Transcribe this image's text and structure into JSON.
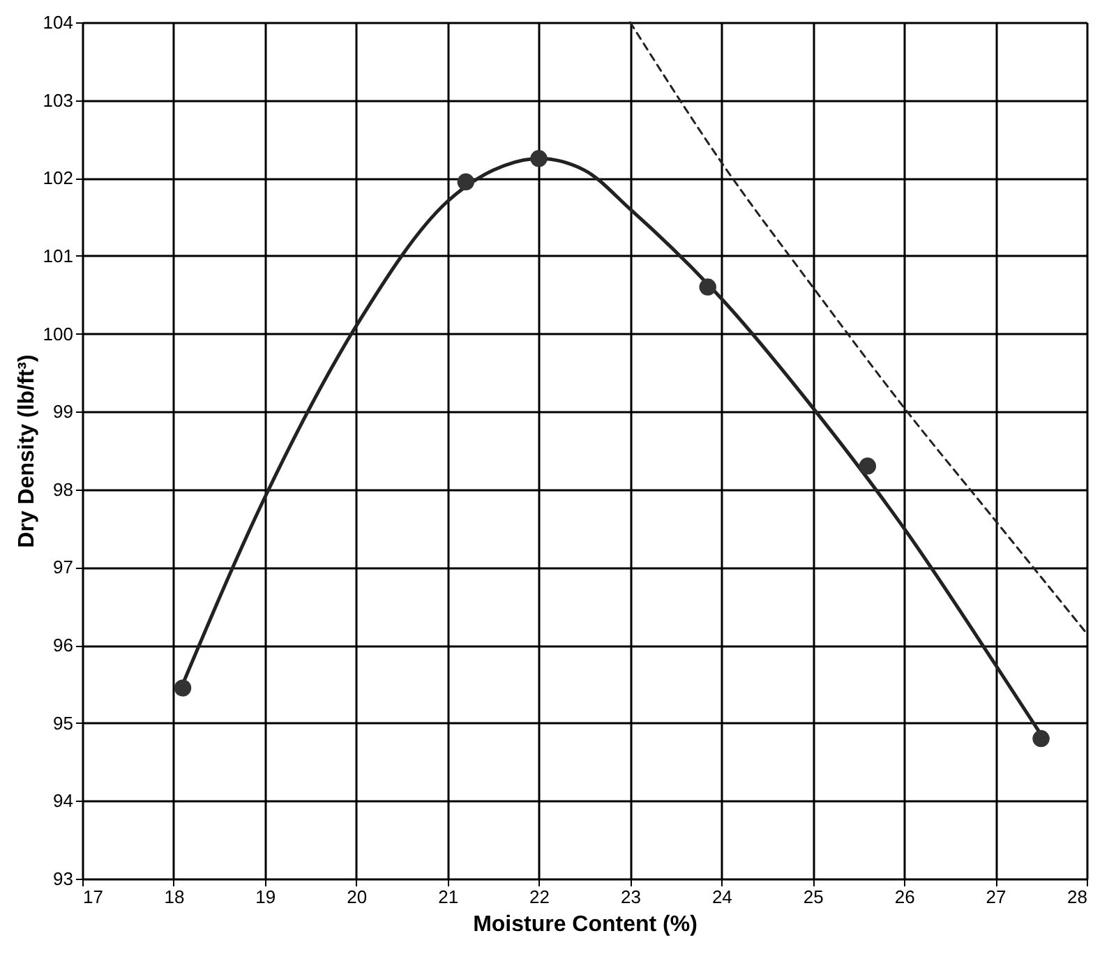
{
  "chart_data": {
    "type": "scatter",
    "xlabel": "Moisture Content (%)",
    "ylabel": "Dry Density (lb/ft³)",
    "xlim": [
      17,
      28
    ],
    "xticks": [
      17,
      18,
      19,
      20,
      21,
      22,
      23,
      24,
      25,
      26,
      27,
      28
    ],
    "ylim": [
      93,
      104
    ],
    "yticks": [
      93,
      94,
      95,
      96,
      97,
      98,
      99,
      100,
      101,
      102,
      103,
      104
    ],
    "grid": true,
    "series": [
      {
        "type": "line",
        "color": "#222222",
        "line_style": "solid",
        "marker": "none",
        "x": [
          18.1,
          19,
          20,
          21,
          21.5,
          22,
          22.5,
          23,
          24,
          25,
          26,
          27,
          27.5
        ],
        "values": [
          95.5,
          97.9,
          100.1,
          101.7,
          102.1,
          102.25,
          102.1,
          101.6,
          100.45,
          99.05,
          97.5,
          95.75,
          94.85
        ]
      },
      {
        "type": "line",
        "color": "#222222",
        "line_style": "dashed",
        "marker": "none",
        "x": [
          23,
          24,
          25,
          26,
          27,
          28
        ],
        "values": [
          104,
          102.2,
          100.6,
          99.05,
          97.6,
          96.15
        ]
      },
      {
        "color": "#333333",
        "marker": "circle",
        "x": [
          18.1,
          21.2,
          22.0,
          23.85,
          25.6,
          27.5
        ],
        "values": [
          95.45,
          101.95,
          102.25,
          100.6,
          98.3,
          94.8
        ]
      }
    ]
  }
}
